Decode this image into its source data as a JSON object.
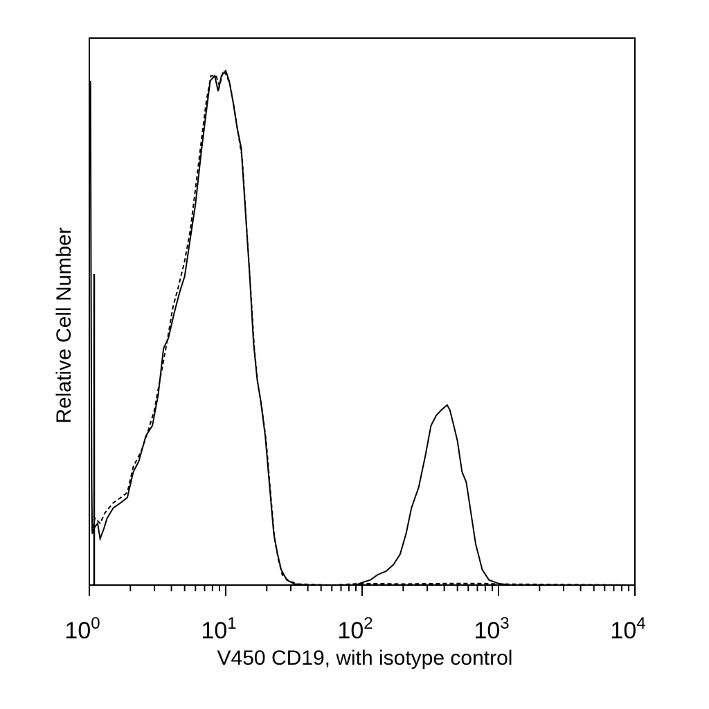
{
  "chart_data": {
    "type": "line",
    "title": "",
    "xlabel": "V450 CD19, with isotype control",
    "ylabel": "Relative Cell Number",
    "xscale": "log",
    "xlim": [
      1,
      10000
    ],
    "ylim": [
      0,
      100
    ],
    "grid": false,
    "legend": "none",
    "x_ticks": [
      {
        "value": 1,
        "base": "10",
        "exp": "0"
      },
      {
        "value": 10,
        "base": "10",
        "exp": "1"
      },
      {
        "value": 100,
        "base": "10",
        "exp": "2"
      },
      {
        "value": 1000,
        "base": "10",
        "exp": "3"
      },
      {
        "value": 10000,
        "base": "10",
        "exp": "4"
      }
    ],
    "series": [
      {
        "style": "solid",
        "color": "#000000",
        "points": [
          [
            1.02,
            98
          ],
          [
            1.03,
            60
          ],
          [
            1.04,
            20
          ],
          [
            1.05,
            10
          ],
          [
            1.08,
            11
          ],
          [
            1.15,
            12
          ],
          [
            1.2,
            9
          ],
          [
            1.28,
            11
          ],
          [
            1.35,
            13
          ],
          [
            1.5,
            15
          ],
          [
            1.7,
            16
          ],
          [
            1.9,
            17
          ],
          [
            2.1,
            22
          ],
          [
            2.3,
            24
          ],
          [
            2.6,
            29
          ],
          [
            2.9,
            31
          ],
          [
            3.2,
            37
          ],
          [
            3.5,
            46
          ],
          [
            3.8,
            48
          ],
          [
            4.2,
            53
          ],
          [
            4.6,
            57
          ],
          [
            5.0,
            60
          ],
          [
            5.4,
            66
          ],
          [
            6.0,
            74
          ],
          [
            6.6,
            84
          ],
          [
            7.2,
            92
          ],
          [
            7.7,
            98
          ],
          [
            8.3,
            99
          ],
          [
            8.8,
            96
          ],
          [
            9.3,
            99
          ],
          [
            10.0,
            100
          ],
          [
            10.6,
            98
          ],
          [
            11.3,
            94
          ],
          [
            12.1,
            89
          ],
          [
            13.0,
            85
          ],
          [
            14.0,
            72
          ],
          [
            15.0,
            60
          ],
          [
            16.0,
            47
          ],
          [
            17.0,
            40
          ],
          [
            18.0,
            36
          ],
          [
            19.5,
            29
          ],
          [
            21.0,
            19
          ],
          [
            22.5,
            10
          ],
          [
            24.0,
            6
          ],
          [
            25.5,
            3
          ],
          [
            28.0,
            1
          ],
          [
            32.0,
            0.2
          ],
          [
            40.0,
            0
          ],
          [
            90.0,
            0
          ],
          [
            100,
            0.5
          ],
          [
            115,
            1
          ],
          [
            130,
            2
          ],
          [
            150,
            2.7
          ],
          [
            170,
            4
          ],
          [
            190,
            6
          ],
          [
            210,
            10
          ],
          [
            230,
            15
          ],
          [
            260,
            19
          ],
          [
            290,
            25
          ],
          [
            320,
            31
          ],
          [
            350,
            33
          ],
          [
            380,
            34
          ],
          [
            420,
            35
          ],
          [
            440,
            34
          ],
          [
            470,
            31
          ],
          [
            500,
            28
          ],
          [
            540,
            22
          ],
          [
            580,
            20
          ],
          [
            620,
            15
          ],
          [
            680,
            8
          ],
          [
            760,
            3
          ],
          [
            850,
            1
          ],
          [
            1000,
            0.3
          ],
          [
            1200,
            0
          ],
          [
            10000,
            0
          ]
        ]
      },
      {
        "style": "dashed",
        "color": "#000000",
        "points": [
          [
            1.05,
            11
          ],
          [
            1.1,
            13
          ],
          [
            1.2,
            12
          ],
          [
            1.3,
            14
          ],
          [
            1.5,
            16
          ],
          [
            1.7,
            17
          ],
          [
            1.9,
            18
          ],
          [
            2.1,
            23
          ],
          [
            2.4,
            26
          ],
          [
            2.7,
            30
          ],
          [
            3.0,
            34
          ],
          [
            3.3,
            40
          ],
          [
            3.7,
            47
          ],
          [
            4.1,
            54
          ],
          [
            4.5,
            58
          ],
          [
            5.0,
            63
          ],
          [
            5.5,
            69
          ],
          [
            6.0,
            77
          ],
          [
            6.6,
            86
          ],
          [
            7.2,
            94
          ],
          [
            7.8,
            99
          ],
          [
            8.5,
            99
          ],
          [
            9.0,
            97
          ],
          [
            9.6,
            100
          ],
          [
            10.2,
            99
          ],
          [
            10.8,
            97
          ],
          [
            11.5,
            93
          ],
          [
            12.3,
            88
          ],
          [
            13.2,
            83
          ],
          [
            14.2,
            70
          ],
          [
            15.2,
            58
          ],
          [
            16.2,
            46
          ],
          [
            17.2,
            39
          ],
          [
            18.3,
            35
          ],
          [
            19.8,
            28
          ],
          [
            21.3,
            18
          ],
          [
            22.8,
            9
          ],
          [
            24.3,
            5
          ],
          [
            26.0,
            2
          ],
          [
            29.0,
            0.8
          ],
          [
            34.0,
            0.2
          ],
          [
            60.0,
            0
          ],
          [
            100,
            0.3
          ],
          [
            200,
            0.2
          ],
          [
            400,
            0.3
          ],
          [
            800,
            0.3
          ],
          [
            1000,
            0.2
          ],
          [
            10000,
            0
          ]
        ]
      }
    ]
  }
}
